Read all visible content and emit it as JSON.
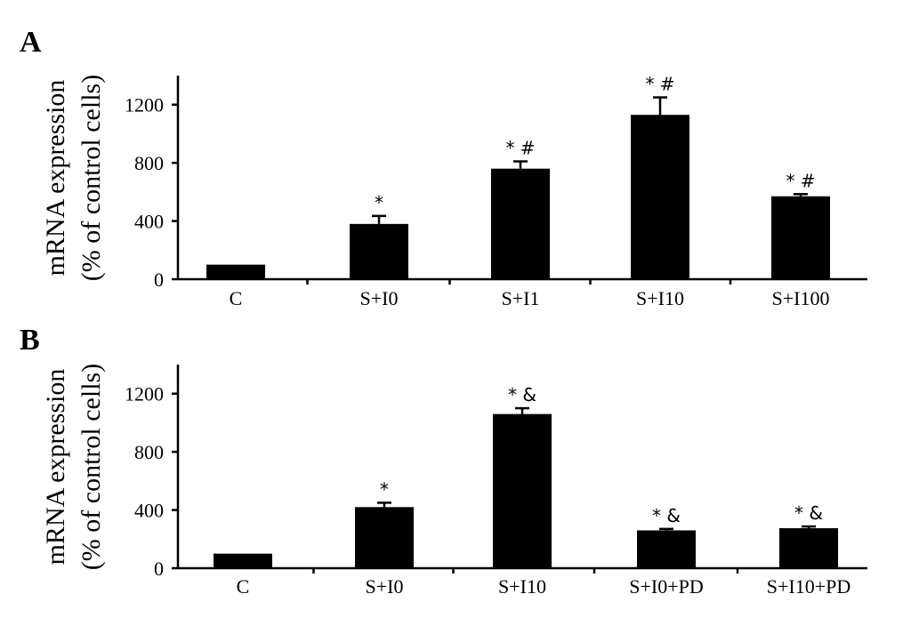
{
  "chart_data": [
    {
      "type": "bar",
      "panel": "A",
      "ylabel_lines": [
        "mRNA expression",
        "(% of control cells)"
      ],
      "ylim": [
        0,
        1400
      ],
      "yticks": [
        0,
        400,
        800,
        1200
      ],
      "categories": [
        "C",
        "S+I0",
        "S+I1",
        "S+I10",
        "S+I100"
      ],
      "values": [
        100,
        380,
        760,
        1130,
        570
      ],
      "errors": [
        0,
        55,
        50,
        120,
        15
      ],
      "annotations": [
        "",
        "*",
        "* #",
        "* #",
        "* #"
      ],
      "bar_color": "#000000"
    },
    {
      "type": "bar",
      "panel": "B",
      "ylabel_lines": [
        "mRNA expression",
        "(% of control cells)"
      ],
      "ylim": [
        0,
        1400
      ],
      "yticks": [
        0,
        400,
        800,
        1200
      ],
      "categories": [
        "C",
        "S+I0",
        "S+I10",
        "S+I0+PD",
        "S+I10+PD"
      ],
      "values": [
        100,
        420,
        1060,
        260,
        275
      ],
      "errors": [
        0,
        30,
        40,
        10,
        12
      ],
      "annotations": [
        "",
        "*",
        "* &",
        "* &",
        "* &"
      ],
      "bar_color": "#000000"
    }
  ]
}
